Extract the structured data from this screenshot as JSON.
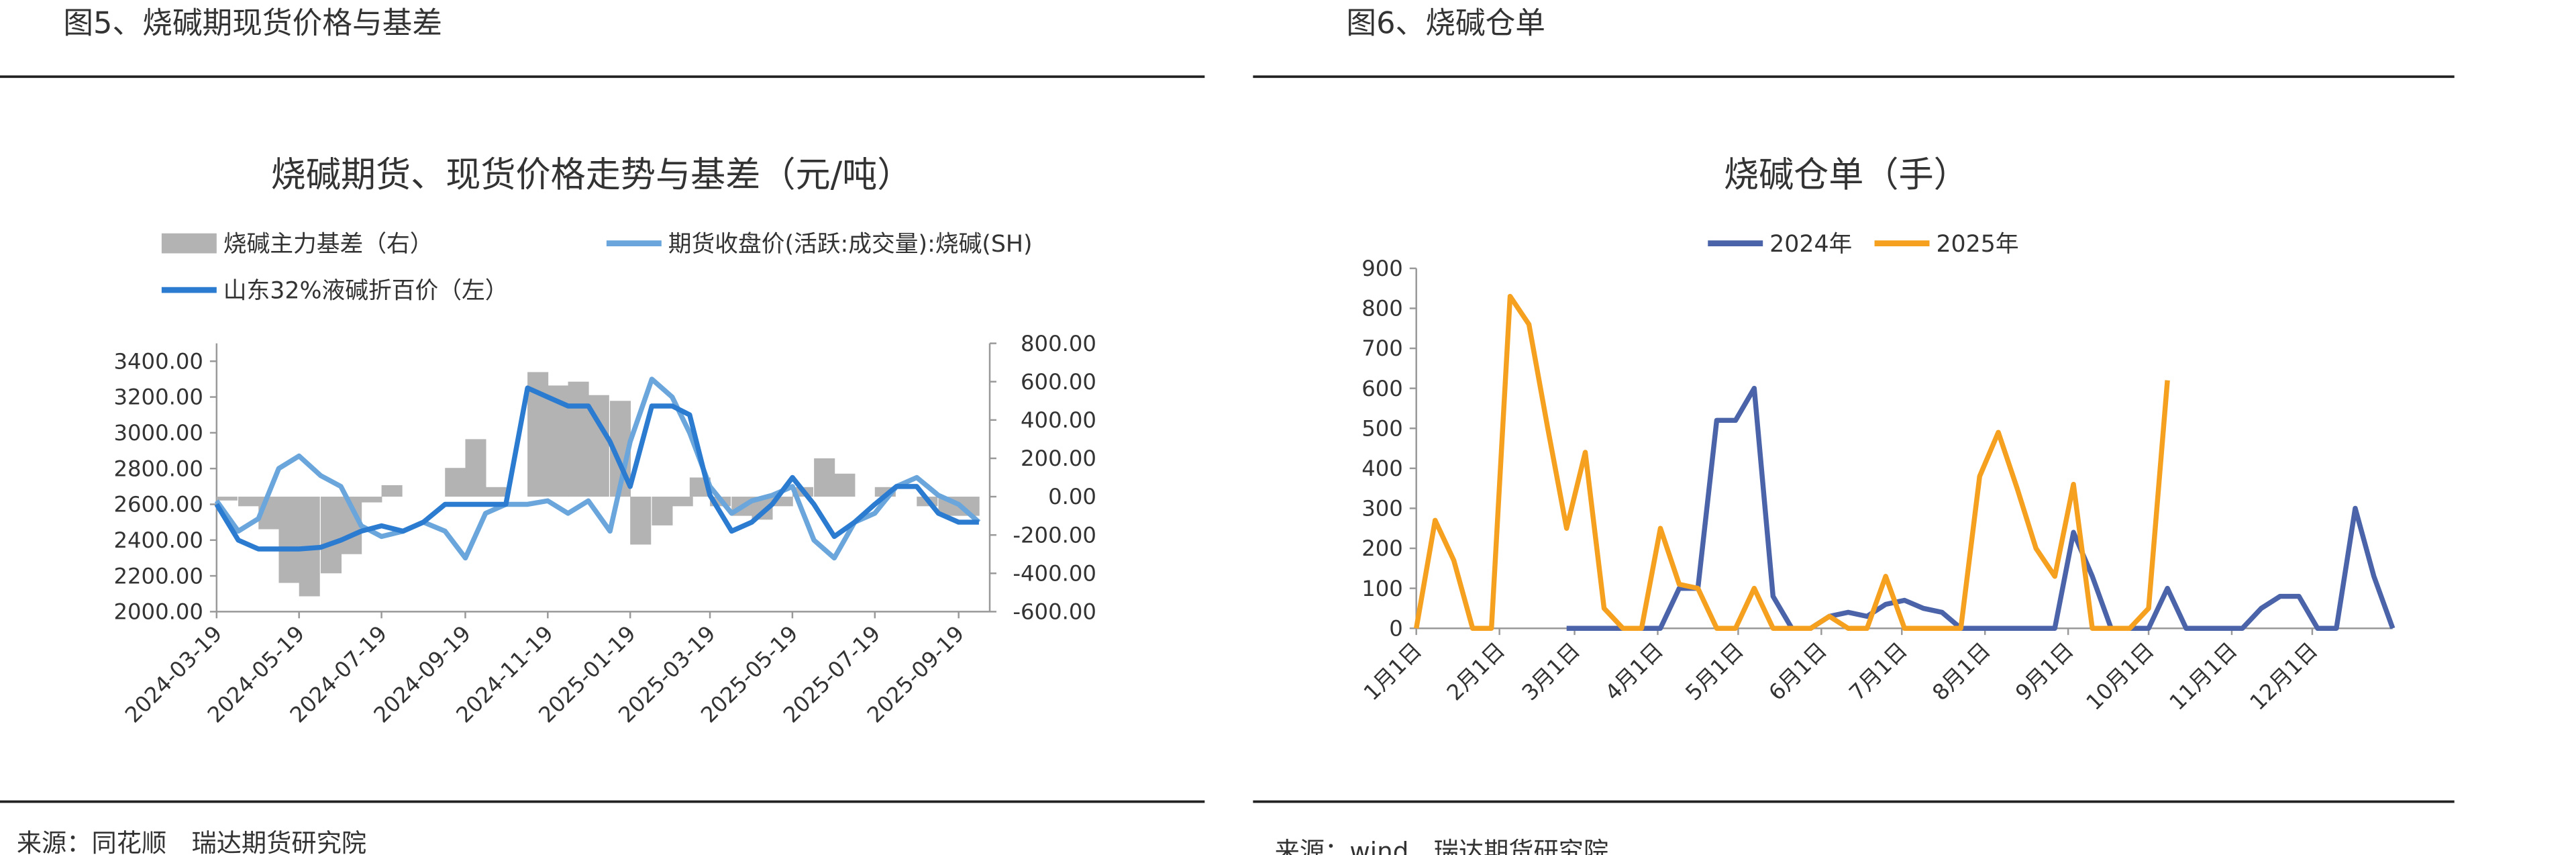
{
  "figures": [
    {
      "heading": "图5、烧碱期现货价格与基差",
      "source": "来源：同花顺　瑞达期货研究院"
    },
    {
      "heading": "图6、烧碱仓单",
      "source": "来源：wind　瑞达期货研究院"
    }
  ],
  "chart_data": [
    {
      "type": "line",
      "title": "烧碱期货、现货价格走势与基差（元/吨）",
      "legend": "top-left",
      "x": [
        "2024-03-19",
        "2024-04-04",
        "2024-04-19",
        "2024-05-04",
        "2024-05-19",
        "2024-06-04",
        "2024-06-19",
        "2024-07-04",
        "2024-07-19",
        "2024-08-04",
        "2024-08-19",
        "2024-09-04",
        "2024-09-19",
        "2024-10-04",
        "2024-10-19",
        "2024-11-04",
        "2024-11-19",
        "2024-12-04",
        "2024-12-19",
        "2025-01-04",
        "2025-01-19",
        "2025-02-04",
        "2025-02-19",
        "2025-03-04",
        "2025-03-19",
        "2025-04-04",
        "2025-04-19",
        "2025-05-04",
        "2025-05-19",
        "2025-06-04",
        "2025-06-19",
        "2025-07-04",
        "2025-07-19",
        "2025-08-04",
        "2025-08-19",
        "2025-09-04",
        "2025-09-19",
        "2025-10-04"
      ],
      "xlim": [
        "2024-03-19",
        "2025-10-12"
      ],
      "xticks": [
        "2024-03-19",
        "2024-05-19",
        "2024-07-19",
        "2024-09-19",
        "2024-11-19",
        "2025-01-19",
        "2025-03-19",
        "2025-05-19",
        "2025-07-19",
        "2025-09-19"
      ],
      "ylim": [
        2000,
        3500
      ],
      "yticks": [
        {
          "value": 2000,
          "label": "2000.00"
        },
        {
          "value": 2200,
          "label": "2200.00"
        },
        {
          "value": 2400,
          "label": "2400.00"
        },
        {
          "value": 2600,
          "label": "2600.00"
        },
        {
          "value": 2800,
          "label": "2800.00"
        },
        {
          "value": 3000,
          "label": "3000.00"
        },
        {
          "value": 3200,
          "label": "3200.00"
        },
        {
          "value": 3400,
          "label": "3400.00"
        }
      ],
      "y2lim": [
        -600,
        800
      ],
      "y2ticks": [
        {
          "value": -600,
          "label": "-600.00"
        },
        {
          "value": -400,
          "label": "-400.00"
        },
        {
          "value": -200,
          "label": "-200.00"
        },
        {
          "value": 0,
          "label": "0.00"
        },
        {
          "value": 200,
          "label": "200.00"
        },
        {
          "value": 400,
          "label": "400.00"
        },
        {
          "value": 600,
          "label": "600.00"
        },
        {
          "value": 800,
          "label": "800.00"
        }
      ],
      "series": [
        {
          "name": "烧碱主力基差（右）",
          "type": "bar",
          "axis": "y2",
          "color": "#b3b3b3",
          "values": [
            -20,
            -50,
            -170,
            -450,
            -520,
            -400,
            -300,
            -30,
            60,
            0,
            0,
            150,
            300,
            50,
            0,
            650,
            580,
            600,
            530,
            500,
            -250,
            -150,
            -50,
            100,
            -50,
            -100,
            -120,
            -50,
            50,
            200,
            120,
            0,
            50,
            0,
            -50,
            -100,
            -100,
            0
          ]
        },
        {
          "name": "期货收盘价(活跃:成交量):烧碱(SH)",
          "type": "line",
          "color": "#6aa6dc",
          "values": [
            2620,
            2450,
            2520,
            2800,
            2870,
            2760,
            2700,
            2480,
            2420,
            2450,
            2500,
            2450,
            2300,
            2550,
            2600,
            2600,
            2620,
            2550,
            2620,
            2450,
            2950,
            3300,
            3200,
            3000,
            2700,
            2550,
            2620,
            2650,
            2700,
            2400,
            2300,
            2500,
            2550,
            2700,
            2750,
            2650,
            2600,
            2500
          ]
        },
        {
          "name": "山东32%液碱折百价（左）",
          "type": "line",
          "color": "#2b7bd0",
          "values": [
            2600,
            2400,
            2350,
            2350,
            2350,
            2360,
            2400,
            2450,
            2480,
            2450,
            2500,
            2600,
            2600,
            2600,
            2600,
            3250,
            3200,
            3150,
            3150,
            2950,
            2700,
            3150,
            3150,
            3100,
            2650,
            2450,
            2500,
            2600,
            2750,
            2600,
            2420,
            2500,
            2600,
            2700,
            2700,
            2550,
            2500,
            2500
          ]
        }
      ]
    },
    {
      "type": "line",
      "title": "烧碱仓单（手）",
      "legend": "top",
      "x": [
        "1月1日",
        "1月8日",
        "1月15日",
        "1月22日",
        "1月29日",
        "2月5日",
        "2月12日",
        "2月19日",
        "2月26日",
        "3月5日",
        "3月12日",
        "3月19日",
        "3月26日",
        "4月2日",
        "4月9日",
        "4月16日",
        "4月23日",
        "4月30日",
        "5月7日",
        "5月14日",
        "5月21日",
        "5月28日",
        "6月4日",
        "6月11日",
        "6月18日",
        "6月25日",
        "7月2日",
        "7月9日",
        "7月16日",
        "7月23日",
        "7月30日",
        "8月6日",
        "8月13日",
        "8月20日",
        "8月27日",
        "9月3日",
        "9月10日",
        "9月17日",
        "9月24日",
        "10月1日",
        "10月8日",
        "10月15日",
        "10月22日",
        "10月29日",
        "11月5日",
        "11月12日",
        "11月19日",
        "11月26日",
        "12月3日",
        "12月10日",
        "12月17日",
        "12月24日",
        "12月31日"
      ],
      "xlim": [
        "1月1日",
        "12月31日"
      ],
      "xticks": [
        "1月1日",
        "2月1日",
        "3月1日",
        "4月1日",
        "5月1日",
        "6月1日",
        "7月1日",
        "8月1日",
        "9月1日",
        "10月1日",
        "11月1日",
        "12月1日"
      ],
      "ylim": [
        0,
        900
      ],
      "yticks": [
        0,
        100,
        200,
        300,
        400,
        500,
        600,
        700,
        800,
        900
      ],
      "series": [
        {
          "name": "2024年",
          "type": "line",
          "color": "#4a63a9",
          "values": [
            null,
            null,
            null,
            null,
            null,
            null,
            null,
            null,
            0,
            0,
            0,
            0,
            0,
            0,
            100,
            100,
            520,
            520,
            600,
            80,
            0,
            0,
            30,
            40,
            30,
            60,
            70,
            50,
            40,
            0,
            0,
            0,
            0,
            0,
            0,
            240,
            130,
            0,
            0,
            0,
            100,
            0,
            0,
            0,
            0,
            50,
            80,
            80,
            0,
            0,
            300,
            130,
            0
          ]
        },
        {
          "name": "2025年",
          "type": "line",
          "color": "#f5a01f",
          "values": [
            0,
            270,
            170,
            0,
            0,
            830,
            760,
            500,
            250,
            440,
            50,
            0,
            0,
            250,
            110,
            100,
            0,
            0,
            100,
            0,
            0,
            0,
            30,
            0,
            0,
            130,
            0,
            0,
            0,
            0,
            380,
            490,
            350,
            200,
            130,
            360,
            0,
            0,
            0,
            50,
            620,
            null,
            null,
            null,
            null,
            null,
            null,
            null,
            null,
            null,
            null,
            null,
            null
          ]
        }
      ]
    }
  ]
}
